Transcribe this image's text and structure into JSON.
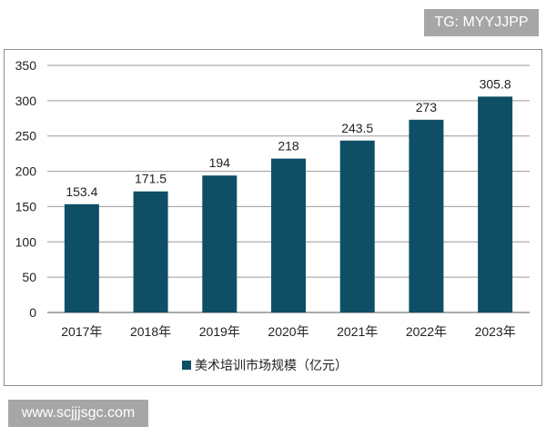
{
  "watermarks": {
    "top": "TG: MYYJJPP",
    "bottom": "www.scjjjsgc.com"
  },
  "chart_data": {
    "type": "bar",
    "title": "",
    "xlabel": "",
    "ylabel": "",
    "categories": [
      "2017年",
      "2018年",
      "2019年",
      "2020年",
      "2021年",
      "2022年",
      "2023年"
    ],
    "series": [
      {
        "name": "美术培训市场规模（亿元）",
        "values": [
          153.4,
          171.5,
          194,
          218,
          243.5,
          273,
          305.8
        ],
        "labels": [
          "153.4",
          "171.5",
          "194",
          "218",
          "243.5",
          "273",
          "305.8"
        ]
      }
    ],
    "ylim": [
      0,
      350
    ],
    "yticks": [
      0,
      50,
      100,
      150,
      200,
      250,
      300,
      350
    ],
    "grid": true,
    "legend": "bottom",
    "color": "#0e4f66"
  }
}
